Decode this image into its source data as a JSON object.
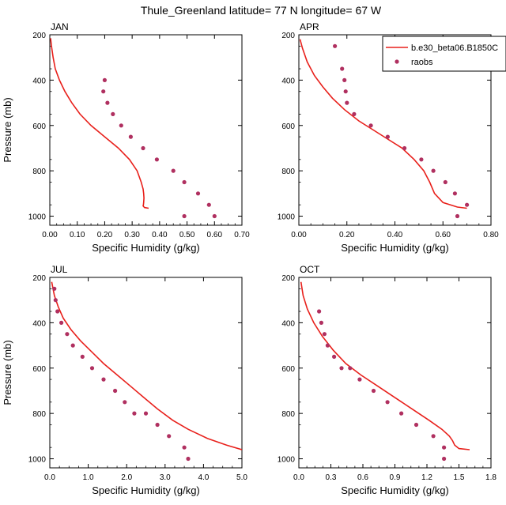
{
  "figure": {
    "title": "Thule_Greenland  latitude= 77 N longitude= 67 W"
  },
  "colors": {
    "model": "#e8201b",
    "raobs": "#b03060"
  },
  "chart_data": [
    {
      "type": "line",
      "panel_label": "JAN",
      "xlabel": "Specific Humidity (g/kg)",
      "ylabel": "Pressure (mb)",
      "xlim": [
        0,
        0.7
      ],
      "ylim": [
        200,
        1040
      ],
      "y_inverted": true,
      "xticks": [
        "0.00",
        "0.10",
        "0.20",
        "0.30",
        "0.40",
        "0.50",
        "0.60",
        "0.70"
      ],
      "xtick_values": [
        0,
        0.1,
        0.2,
        0.3,
        0.4,
        0.5,
        0.6,
        0.7
      ],
      "yticks": [
        "200",
        "400",
        "600",
        "800",
        "1000"
      ],
      "ytick_values": [
        200,
        400,
        600,
        800,
        1000
      ],
      "legend": null,
      "series": [
        {
          "name": "b.e30_beta06.B1850C",
          "kind": "line",
          "x": [
            0.003,
            0.006,
            0.012,
            0.02,
            0.035,
            0.055,
            0.08,
            0.11,
            0.15,
            0.2,
            0.25,
            0.29,
            0.318,
            0.333,
            0.34,
            0.342,
            0.343,
            0.342,
            0.341,
            0.34,
            0.345,
            0.36
          ],
          "y": [
            215,
            250,
            300,
            350,
            400,
            450,
            500,
            550,
            600,
            650,
            700,
            750,
            800,
            850,
            880,
            900,
            920,
            940,
            950,
            955,
            962,
            965
          ]
        },
        {
          "name": "raobs",
          "kind": "scatter",
          "x": [
            0.2,
            0.195,
            0.21,
            0.23,
            0.26,
            0.295,
            0.34,
            0.39,
            0.45,
            0.49,
            0.54,
            0.58,
            0.6,
            0.49
          ],
          "y": [
            400,
            450,
            500,
            550,
            600,
            650,
            700,
            750,
            800,
            850,
            900,
            950,
            1000,
            1000
          ]
        }
      ]
    },
    {
      "type": "line",
      "panel_label": "APR",
      "xlabel": "Specific Humidity (g/kg)",
      "ylabel": "",
      "xlim": [
        0,
        0.8
      ],
      "ylim": [
        200,
        1040
      ],
      "y_inverted": true,
      "xticks": [
        "0.00",
        "0.20",
        "0.40",
        "0.60",
        "0.80"
      ],
      "xtick_values": [
        0,
        0.2,
        0.4,
        0.6,
        0.8
      ],
      "yticks": [
        "200",
        "400",
        "600",
        "800",
        "1000"
      ],
      "ytick_values": [
        200,
        400,
        600,
        800,
        1000
      ],
      "legend": {
        "placement": "top-right",
        "entries": [
          {
            "label": "b.e30_beta06.B1850C",
            "kind": "line"
          },
          {
            "label": "raobs",
            "kind": "marker"
          }
        ]
      },
      "series": [
        {
          "name": "b.e30_beta06.B1850C",
          "kind": "line",
          "x": [
            0.005,
            0.015,
            0.035,
            0.065,
            0.1,
            0.14,
            0.19,
            0.25,
            0.31,
            0.37,
            0.43,
            0.48,
            0.52,
            0.545,
            0.565,
            0.6,
            0.66,
            0.7
          ],
          "y": [
            220,
            260,
            320,
            380,
            430,
            480,
            530,
            580,
            620,
            660,
            700,
            750,
            800,
            850,
            900,
            940,
            960,
            965
          ]
        },
        {
          "name": "raobs",
          "kind": "scatter",
          "x": [
            0.15,
            0.18,
            0.19,
            0.195,
            0.2,
            0.23,
            0.3,
            0.37,
            0.44,
            0.51,
            0.56,
            0.61,
            0.65,
            0.7,
            0.66
          ],
          "y": [
            250,
            350,
            400,
            450,
            500,
            550,
            600,
            650,
            700,
            750,
            800,
            850,
            900,
            950,
            1000
          ]
        }
      ]
    },
    {
      "type": "line",
      "panel_label": "JUL",
      "xlabel": "Specific Humidity (g/kg)",
      "ylabel": "Pressure (mb)",
      "xlim": [
        0,
        5.0
      ],
      "ylim": [
        200,
        1040
      ],
      "y_inverted": true,
      "xticks": [
        "0.0",
        "1.0",
        "2.0",
        "3.0",
        "4.0",
        "5.0"
      ],
      "xtick_values": [
        0,
        1,
        2,
        3,
        4,
        5
      ],
      "yticks": [
        "200",
        "400",
        "600",
        "800",
        "1000"
      ],
      "ytick_values": [
        200,
        400,
        600,
        800,
        1000
      ],
      "legend": null,
      "series": [
        {
          "name": "b.e30_beta06.B1850C",
          "kind": "line",
          "x": [
            0.05,
            0.12,
            0.22,
            0.35,
            0.55,
            0.8,
            1.1,
            1.4,
            1.75,
            2.1,
            2.45,
            2.8,
            3.2,
            3.6,
            4.1,
            4.6,
            5.0
          ],
          "y": [
            220,
            280,
            330,
            380,
            430,
            480,
            530,
            580,
            630,
            680,
            730,
            780,
            830,
            870,
            910,
            940,
            960
          ]
        },
        {
          "name": "raobs",
          "kind": "scatter",
          "x": [
            0.12,
            0.15,
            0.2,
            0.3,
            0.45,
            0.6,
            0.85,
            1.1,
            1.4,
            1.7,
            1.95,
            2.2,
            2.5,
            2.8,
            3.1,
            3.5,
            3.6
          ],
          "y": [
            250,
            300,
            350,
            400,
            450,
            500,
            550,
            600,
            650,
            700,
            750,
            800,
            800,
            850,
            900,
            950,
            1000
          ]
        }
      ]
    },
    {
      "type": "line",
      "panel_label": "OCT",
      "xlabel": "Specific Humidity (g/kg)",
      "ylabel": "",
      "xlim": [
        0,
        1.8
      ],
      "ylim": [
        200,
        1040
      ],
      "y_inverted": true,
      "xticks": [
        "0.0",
        "0.3",
        "0.6",
        "0.9",
        "1.2",
        "1.5",
        "1.8"
      ],
      "xtick_values": [
        0,
        0.3,
        0.6,
        0.9,
        1.2,
        1.5,
        1.8
      ],
      "yticks": [
        "200",
        "400",
        "600",
        "800",
        "1000"
      ],
      "ytick_values": [
        200,
        400,
        600,
        800,
        1000
      ],
      "legend": null,
      "series": [
        {
          "name": "b.e30_beta06.B1850C",
          "kind": "line",
          "x": [
            0.02,
            0.04,
            0.08,
            0.14,
            0.22,
            0.32,
            0.44,
            0.58,
            0.74,
            0.9,
            1.06,
            1.22,
            1.34,
            1.41,
            1.44,
            1.46,
            1.5,
            1.6
          ],
          "y": [
            220,
            280,
            340,
            400,
            460,
            520,
            580,
            630,
            680,
            730,
            780,
            830,
            870,
            900,
            920,
            940,
            955,
            960
          ]
        },
        {
          "name": "raobs",
          "kind": "scatter",
          "x": [
            0.19,
            0.21,
            0.24,
            0.27,
            0.33,
            0.4,
            0.48,
            0.57,
            0.7,
            0.83,
            0.96,
            1.1,
            1.26,
            1.36,
            1.36
          ],
          "y": [
            350,
            400,
            450,
            500,
            550,
            600,
            600,
            650,
            700,
            750,
            800,
            850,
            900,
            950,
            1000
          ]
        }
      ]
    }
  ]
}
